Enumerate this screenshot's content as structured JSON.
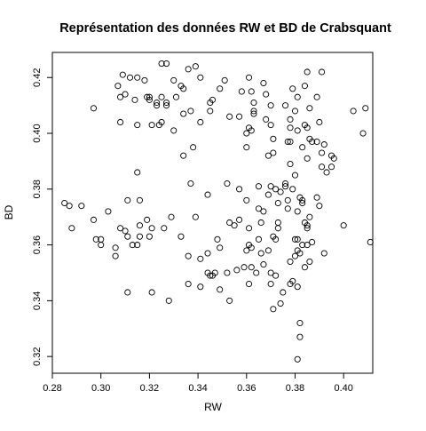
{
  "chart_data": {
    "type": "scatter",
    "title": "Représentation des données RW et BD de Crabsquant",
    "xlabel": "RW",
    "ylabel": "BD",
    "xlim": [
      0.28,
      0.412
    ],
    "ylim": [
      0.314,
      0.429
    ],
    "xticks": [
      0.28,
      0.3,
      0.32,
      0.34,
      0.36,
      0.38,
      0.4
    ],
    "xtick_labels": [
      "0.28",
      "0.30",
      "0.32",
      "0.34",
      "0.36",
      "0.38",
      "0.40"
    ],
    "yticks": [
      0.32,
      0.34,
      0.36,
      0.38,
      0.4,
      0.42
    ],
    "ytick_labels": [
      "0.32",
      "0.34",
      "0.36",
      "0.38",
      "0.40",
      "0.42"
    ],
    "grid": false,
    "legend": "none",
    "marker": "open-circle",
    "marker_color": "#000000",
    "points": [
      [
        0.327,
        0.425
      ],
      [
        0.325,
        0.425
      ],
      [
        0.333,
        0.417
      ],
      [
        0.334,
        0.416
      ],
      [
        0.336,
        0.423
      ],
      [
        0.339,
        0.424
      ],
      [
        0.346,
        0.412
      ],
      [
        0.349,
        0.416
      ],
      [
        0.309,
        0.421
      ],
      [
        0.312,
        0.42
      ],
      [
        0.315,
        0.42
      ],
      [
        0.318,
        0.419
      ],
      [
        0.307,
        0.417
      ],
      [
        0.308,
        0.413
      ],
      [
        0.314,
        0.412
      ],
      [
        0.319,
        0.413
      ],
      [
        0.32,
        0.413
      ],
      [
        0.323,
        0.411
      ],
      [
        0.325,
        0.413
      ],
      [
        0.327,
        0.411
      ],
      [
        0.33,
        0.419
      ],
      [
        0.331,
        0.413
      ],
      [
        0.327,
        0.41
      ],
      [
        0.323,
        0.41
      ],
      [
        0.32,
        0.412
      ],
      [
        0.31,
        0.414
      ],
      [
        0.341,
        0.42
      ],
      [
        0.351,
        0.419
      ],
      [
        0.358,
        0.415
      ],
      [
        0.345,
        0.411
      ],
      [
        0.315,
        0.403
      ],
      [
        0.321,
        0.403
      ],
      [
        0.324,
        0.403
      ],
      [
        0.325,
        0.404
      ],
      [
        0.33,
        0.401
      ],
      [
        0.334,
        0.407
      ],
      [
        0.337,
        0.408
      ],
      [
        0.341,
        0.404
      ],
      [
        0.345,
        0.408
      ],
      [
        0.353,
        0.406
      ],
      [
        0.357,
        0.406
      ],
      [
        0.297,
        0.409
      ],
      [
        0.308,
        0.404
      ],
      [
        0.338,
        0.395
      ],
      [
        0.361,
        0.42
      ],
      [
        0.362,
        0.415
      ],
      [
        0.363,
        0.411
      ],
      [
        0.363,
        0.408
      ],
      [
        0.363,
        0.407
      ],
      [
        0.361,
        0.402
      ],
      [
        0.362,
        0.401
      ],
      [
        0.36,
        0.4
      ],
      [
        0.368,
        0.414
      ],
      [
        0.37,
        0.41
      ],
      [
        0.368,
        0.405
      ],
      [
        0.37,
        0.403
      ],
      [
        0.371,
        0.398
      ],
      [
        0.371,
        0.393
      ],
      [
        0.369,
        0.392
      ],
      [
        0.376,
        0.41
      ],
      [
        0.378,
        0.405
      ],
      [
        0.378,
        0.402
      ],
      [
        0.378,
        0.397
      ],
      [
        0.377,
        0.397
      ],
      [
        0.378,
        0.389
      ],
      [
        0.38,
        0.385
      ],
      [
        0.379,
        0.416
      ],
      [
        0.381,
        0.413
      ],
      [
        0.384,
        0.417
      ],
      [
        0.385,
        0.422
      ],
      [
        0.389,
        0.413
      ],
      [
        0.391,
        0.422
      ],
      [
        0.38,
        0.408
      ],
      [
        0.381,
        0.401
      ],
      [
        0.384,
        0.403
      ],
      [
        0.385,
        0.402
      ],
      [
        0.386,
        0.409
      ],
      [
        0.387,
        0.397
      ],
      [
        0.389,
        0.397
      ],
      [
        0.39,
        0.404
      ],
      [
        0.383,
        0.395
      ],
      [
        0.385,
        0.391
      ],
      [
        0.386,
        0.398
      ],
      [
        0.391,
        0.393
      ],
      [
        0.392,
        0.396
      ],
      [
        0.391,
        0.388
      ],
      [
        0.393,
        0.386
      ],
      [
        0.395,
        0.388
      ],
      [
        0.395,
        0.392
      ],
      [
        0.396,
        0.391
      ],
      [
        0.404,
        0.408
      ],
      [
        0.409,
        0.409
      ],
      [
        0.408,
        0.4
      ],
      [
        0.367,
        0.418
      ],
      [
        0.36,
        0.395
      ],
      [
        0.315,
        0.386
      ],
      [
        0.285,
        0.375
      ],
      [
        0.287,
        0.374
      ],
      [
        0.292,
        0.374
      ],
      [
        0.288,
        0.366
      ],
      [
        0.297,
        0.369
      ],
      [
        0.303,
        0.372
      ],
      [
        0.298,
        0.362
      ],
      [
        0.3,
        0.36
      ],
      [
        0.3,
        0.362
      ],
      [
        0.306,
        0.359
      ],
      [
        0.306,
        0.356
      ],
      [
        0.308,
        0.366
      ],
      [
        0.31,
        0.365
      ],
      [
        0.311,
        0.363
      ],
      [
        0.313,
        0.36
      ],
      [
        0.315,
        0.36
      ],
      [
        0.316,
        0.363
      ],
      [
        0.316,
        0.367
      ],
      [
        0.319,
        0.369
      ],
      [
        0.321,
        0.366
      ],
      [
        0.32,
        0.363
      ],
      [
        0.326,
        0.366
      ],
      [
        0.311,
        0.376
      ],
      [
        0.316,
        0.376
      ],
      [
        0.329,
        0.37
      ],
      [
        0.333,
        0.363
      ],
      [
        0.336,
        0.356
      ],
      [
        0.337,
        0.382
      ],
      [
        0.339,
        0.37
      ],
      [
        0.344,
        0.378
      ],
      [
        0.344,
        0.357
      ],
      [
        0.348,
        0.362
      ],
      [
        0.349,
        0.359
      ],
      [
        0.352,
        0.382
      ],
      [
        0.353,
        0.368
      ],
      [
        0.355,
        0.367
      ],
      [
        0.357,
        0.369
      ],
      [
        0.357,
        0.38
      ],
      [
        0.36,
        0.376
      ],
      [
        0.361,
        0.366
      ],
      [
        0.361,
        0.36
      ],
      [
        0.362,
        0.359
      ],
      [
        0.366,
        0.368
      ],
      [
        0.365,
        0.373
      ],
      [
        0.365,
        0.362
      ],
      [
        0.367,
        0.372
      ],
      [
        0.369,
        0.378
      ],
      [
        0.369,
        0.358
      ],
      [
        0.371,
        0.363
      ],
      [
        0.372,
        0.362
      ],
      [
        0.373,
        0.368
      ],
      [
        0.373,
        0.366
      ],
      [
        0.372,
        0.38
      ],
      [
        0.373,
        0.375
      ],
      [
        0.374,
        0.379
      ],
      [
        0.376,
        0.381
      ],
      [
        0.376,
        0.382
      ],
      [
        0.377,
        0.376
      ],
      [
        0.38,
        0.362
      ],
      [
        0.381,
        0.362
      ],
      [
        0.381,
        0.358
      ],
      [
        0.382,
        0.357
      ],
      [
        0.383,
        0.36
      ],
      [
        0.385,
        0.36
      ],
      [
        0.384,
        0.368
      ],
      [
        0.385,
        0.366
      ],
      [
        0.386,
        0.37
      ],
      [
        0.387,
        0.361
      ],
      [
        0.381,
        0.372
      ],
      [
        0.383,
        0.375
      ],
      [
        0.389,
        0.377
      ],
      [
        0.392,
        0.357
      ],
      [
        0.4,
        0.367
      ],
      [
        0.411,
        0.361
      ],
      [
        0.39,
        0.374
      ],
      [
        0.382,
        0.377
      ],
      [
        0.383,
        0.376
      ],
      [
        0.379,
        0.38
      ],
      [
        0.311,
        0.343
      ],
      [
        0.321,
        0.343
      ],
      [
        0.328,
        0.34
      ],
      [
        0.336,
        0.346
      ],
      [
        0.341,
        0.355
      ],
      [
        0.341,
        0.345
      ],
      [
        0.344,
        0.35
      ],
      [
        0.345,
        0.349
      ],
      [
        0.346,
        0.349
      ],
      [
        0.347,
        0.35
      ],
      [
        0.349,
        0.344
      ],
      [
        0.352,
        0.35
      ],
      [
        0.353,
        0.34
      ],
      [
        0.356,
        0.351
      ],
      [
        0.359,
        0.352
      ],
      [
        0.36,
        0.358
      ],
      [
        0.361,
        0.346
      ],
      [
        0.362,
        0.352
      ],
      [
        0.364,
        0.35
      ],
      [
        0.366,
        0.357
      ],
      [
        0.367,
        0.353
      ],
      [
        0.37,
        0.35
      ],
      [
        0.37,
        0.346
      ],
      [
        0.371,
        0.337
      ],
      [
        0.372,
        0.349
      ],
      [
        0.374,
        0.339
      ],
      [
        0.375,
        0.343
      ],
      [
        0.378,
        0.346
      ],
      [
        0.379,
        0.347
      ],
      [
        0.381,
        0.345
      ],
      [
        0.382,
        0.332
      ],
      [
        0.382,
        0.327
      ],
      [
        0.381,
        0.319
      ],
      [
        0.38,
        0.356
      ],
      [
        0.378,
        0.354
      ],
      [
        0.384,
        0.352
      ],
      [
        0.386,
        0.354
      ],
      [
        0.385,
        0.367
      ],
      [
        0.377,
        0.373
      ],
      [
        0.365,
        0.381
      ],
      [
        0.37,
        0.381
      ],
      [
        0.334,
        0.392
      ]
    ]
  }
}
